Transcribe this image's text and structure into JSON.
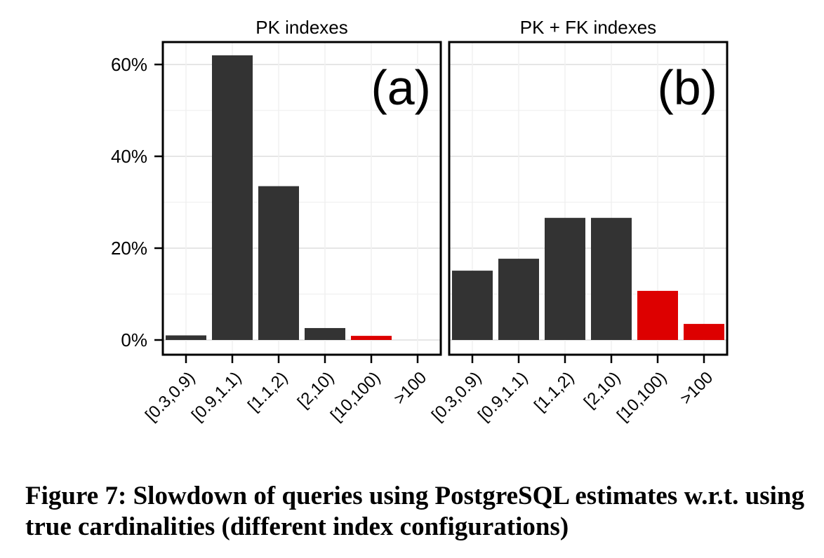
{
  "chart_data": [
    {
      "type": "bar",
      "title": "PK indexes",
      "panel_label": "(a)",
      "categories": [
        "[0.3,0.9)",
        "[0.9,1.1)",
        "[1.1,2)",
        "[2,10)",
        "[10,100)",
        ">100"
      ],
      "values": [
        1,
        62,
        33.5,
        2.6,
        0.9,
        0
      ],
      "colors": [
        "#333333",
        "#333333",
        "#333333",
        "#333333",
        "#dd0000",
        "#dd0000"
      ],
      "ylim": [
        0,
        65
      ],
      "yticks": [
        0,
        20,
        40,
        60
      ],
      "ytick_labels": [
        "0%",
        "20%",
        "40%",
        "60%"
      ],
      "grid": true
    },
    {
      "type": "bar",
      "title": "PK + FK indexes",
      "panel_label": "(b)",
      "categories": [
        "[0.3,0.9)",
        "[0.9,1.1)",
        "[1.1,2)",
        "[2,10)",
        "[10,100)",
        ">100"
      ],
      "values": [
        15.1,
        17.7,
        26.6,
        26.6,
        10.7,
        3.5
      ],
      "colors": [
        "#333333",
        "#333333",
        "#333333",
        "#333333",
        "#dd0000",
        "#dd0000"
      ],
      "ylim": [
        0,
        65
      ],
      "yticks": [
        0,
        20,
        40,
        60
      ],
      "ytick_labels": [
        "0%",
        "20%",
        "40%",
        "60%"
      ],
      "grid": true
    }
  ],
  "caption": "Figure 7:  Slowdown of queries using PostgreSQL estimates w.r.t. using true cardinalities (different index configurations)"
}
